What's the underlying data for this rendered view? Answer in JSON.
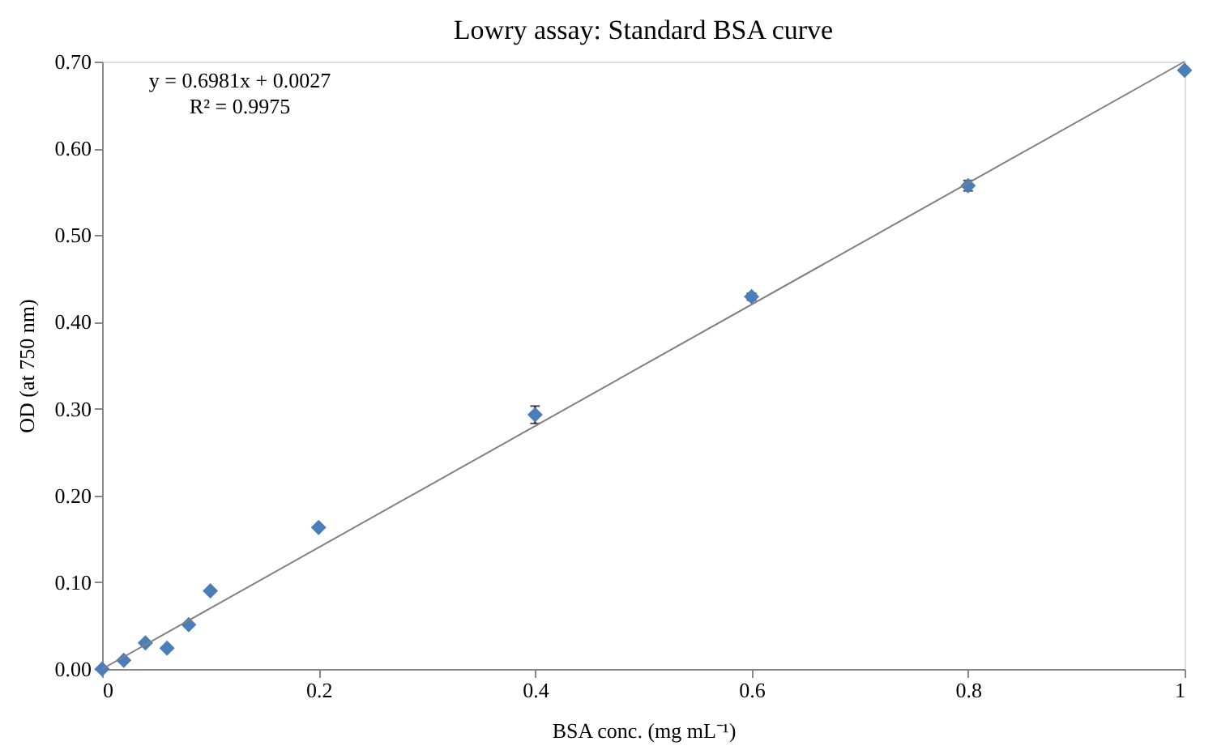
{
  "chart_data": {
    "type": "scatter",
    "title": "Lowry assay: Standard BSA curve",
    "xlabel": "BSA conc. (mg mL⁻¹)",
    "ylabel": "OD (at 750 nm)",
    "annotations": [
      "y = 0.6981x + 0.0027",
      "R² = 0.9975"
    ],
    "xlim": [
      0,
      1
    ],
    "xticks": [
      0,
      0.2,
      0.4,
      0.6,
      0.8,
      1
    ],
    "ylim": [
      0,
      0.7
    ],
    "yticks": [
      {
        "value": 0,
        "label": "0.00"
      },
      {
        "value": 0.1,
        "label": "0.10"
      },
      {
        "value": 0.2,
        "label": "0.20"
      },
      {
        "value": 0.3,
        "label": "0.30"
      },
      {
        "value": 0.4,
        "label": "0.40"
      },
      {
        "value": 0.5,
        "label": "0.50"
      },
      {
        "value": 0.6,
        "label": "0.60"
      },
      {
        "value": 0.7,
        "label": "0.70"
      }
    ],
    "grid": false,
    "marker": "diamond",
    "series": [
      {
        "color": "#4a7ebb",
        "x": [
          0,
          0.02,
          0.04,
          0.06,
          0.08,
          0.1,
          0.2,
          0.4,
          0.6,
          0.8,
          1.0
        ],
        "values": [
          0,
          0.01,
          0.03,
          0.024,
          0.051,
          0.09,
          0.163,
          0.293,
          0.429,
          0.557,
          0.69
        ],
        "errors": [
          null,
          null,
          null,
          null,
          null,
          null,
          null,
          0.01,
          0.004,
          0.006,
          null
        ]
      },
      {
        "type": "line",
        "color": "#808080",
        "line_style": "solid",
        "marker": "none",
        "x": [
          0,
          1
        ],
        "values": [
          0,
          0.7
        ]
      }
    ]
  }
}
